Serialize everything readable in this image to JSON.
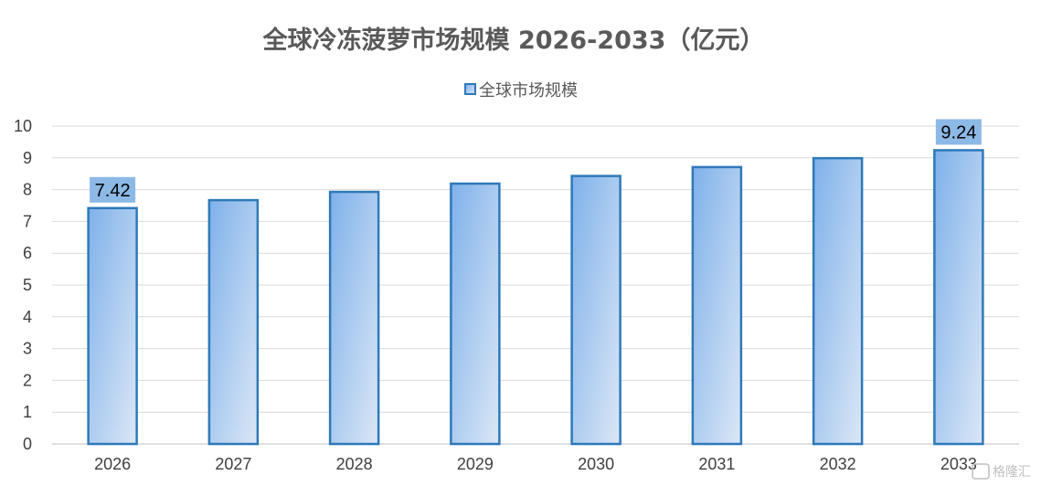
{
  "chart_data": {
    "type": "bar",
    "title": "全球冷冻菠萝市场规模 2026-2033（亿元）",
    "legend": {
      "position": "top",
      "entries": [
        "全球市场规模"
      ]
    },
    "categories": [
      "2026",
      "2027",
      "2028",
      "2029",
      "2030",
      "2031",
      "2032",
      "2033"
    ],
    "series": [
      {
        "name": "全球市场规模",
        "values": [
          7.42,
          7.67,
          7.93,
          8.19,
          8.43,
          8.71,
          8.99,
          9.24
        ]
      }
    ],
    "data_labels": [
      {
        "category": "2026",
        "text": "7.42"
      },
      {
        "category": "2033",
        "text": "9.24"
      }
    ],
    "xlabel": "",
    "ylabel": "",
    "ylim": [
      0,
      10
    ],
    "yticks": [
      "0",
      "1",
      "2",
      "3",
      "4",
      "5",
      "6",
      "7",
      "8",
      "9",
      "10"
    ],
    "grid": true,
    "colors": {
      "bar_top": "#7fb1ea",
      "bar_bottom": "#dbe7f6",
      "bar_border": "#2e79b9",
      "label_bg": "#8db9e6",
      "grid": "#d9d9d9",
      "axis": "#bfbfbf"
    }
  },
  "watermark": {
    "text": "格隆汇"
  }
}
